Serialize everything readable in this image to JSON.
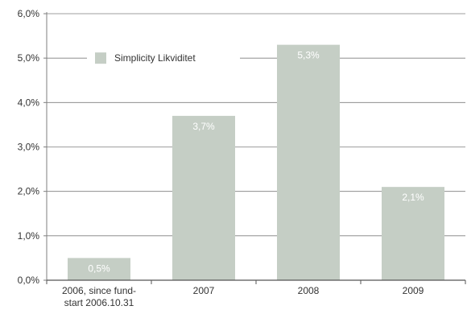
{
  "chart_data": {
    "type": "bar",
    "categories": [
      [
        "2006, since fund-",
        "start 2006.10.31"
      ],
      [
        "2007"
      ],
      [
        "2008"
      ],
      [
        "2009"
      ]
    ],
    "series": [
      {
        "name": "Simplicity Likviditet",
        "values": [
          0.5,
          3.7,
          5.3,
          2.1
        ]
      }
    ],
    "data_labels": [
      "0,5%",
      "3,7%",
      "5,3%",
      "2,1%"
    ],
    "y_ticks": [
      0,
      1,
      2,
      3,
      4,
      5,
      6
    ],
    "y_tick_labels": [
      "0,0%",
      "1,0%",
      "2,0%",
      "3,0%",
      "4,0%",
      "5,0%",
      "6,0%"
    ],
    "ylim": [
      0,
      6
    ],
    "grid": true,
    "legend_position": "top-left",
    "bar_color": "#c5cec5",
    "grid_color": "#7f7f7f",
    "text_color": "#333333"
  }
}
